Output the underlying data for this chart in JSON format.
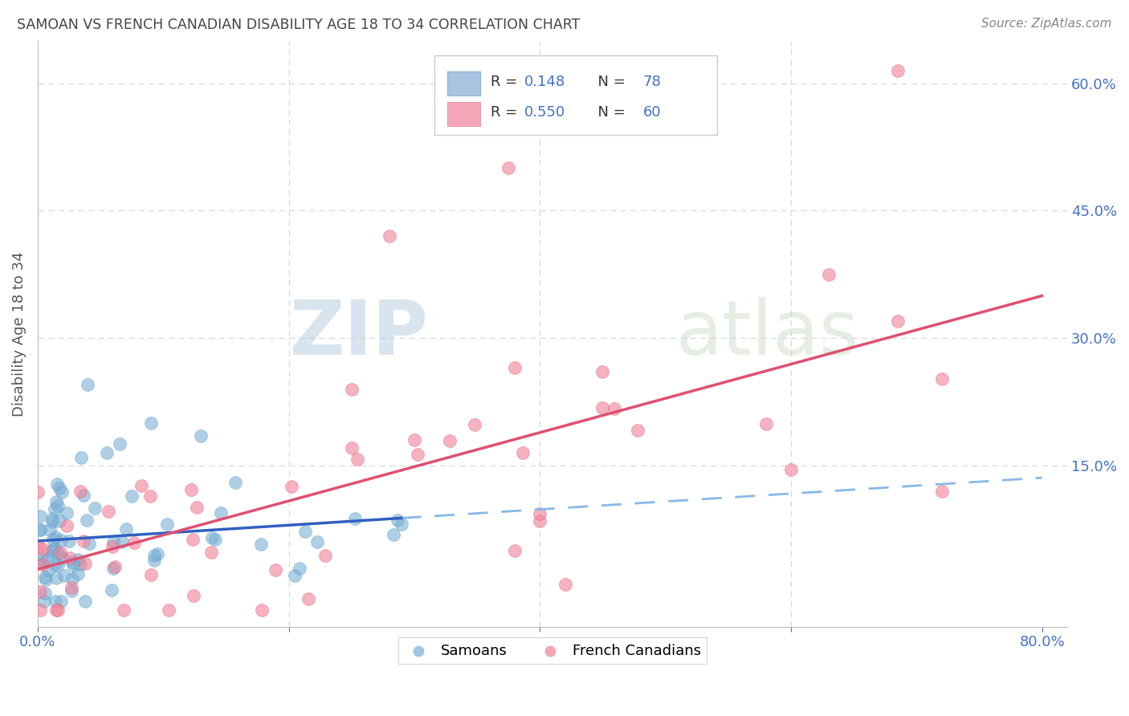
{
  "title": "SAMOAN VS FRENCH CANADIAN DISABILITY AGE 18 TO 34 CORRELATION CHART",
  "source": "Source: ZipAtlas.com",
  "ylabel": "Disability Age 18 to 34",
  "xlim": [
    0.0,
    0.82
  ],
  "ylim": [
    -0.04,
    0.65
  ],
  "xtick_positions": [
    0.0,
    0.2,
    0.4,
    0.6,
    0.8
  ],
  "xtick_labels": [
    "0.0%",
    "",
    "",
    "",
    "80.0%"
  ],
  "yticks_right": [
    0.0,
    0.15,
    0.3,
    0.45,
    0.6
  ],
  "ytick_labels_right": [
    "",
    "15.0%",
    "30.0%",
    "45.0%",
    "60.0%"
  ],
  "watermark_zip": "ZIP",
  "watermark_atlas": "atlas",
  "series1_name": "Samoans",
  "series2_name": "French Canadians",
  "series1_color": "#7bafd4",
  "series1_edge": "#5a9ec8",
  "series2_color": "#f08098",
  "series2_edge": "#e06070",
  "trend1_color_solid": "#3060c0",
  "trend1_color_dashed": "#88b8e8",
  "trend2_color": "#e05070",
  "background_color": "#ffffff",
  "grid_color": "#d8d8d8",
  "legend_box_color": "#a8c4e0",
  "legend_box2_color": "#f4a7b9",
  "r1": 0.148,
  "n1": 78,
  "r2": 0.55,
  "n2": 60,
  "axis_label_color": "#4472c4",
  "title_color": "#444444",
  "source_color": "#888888"
}
